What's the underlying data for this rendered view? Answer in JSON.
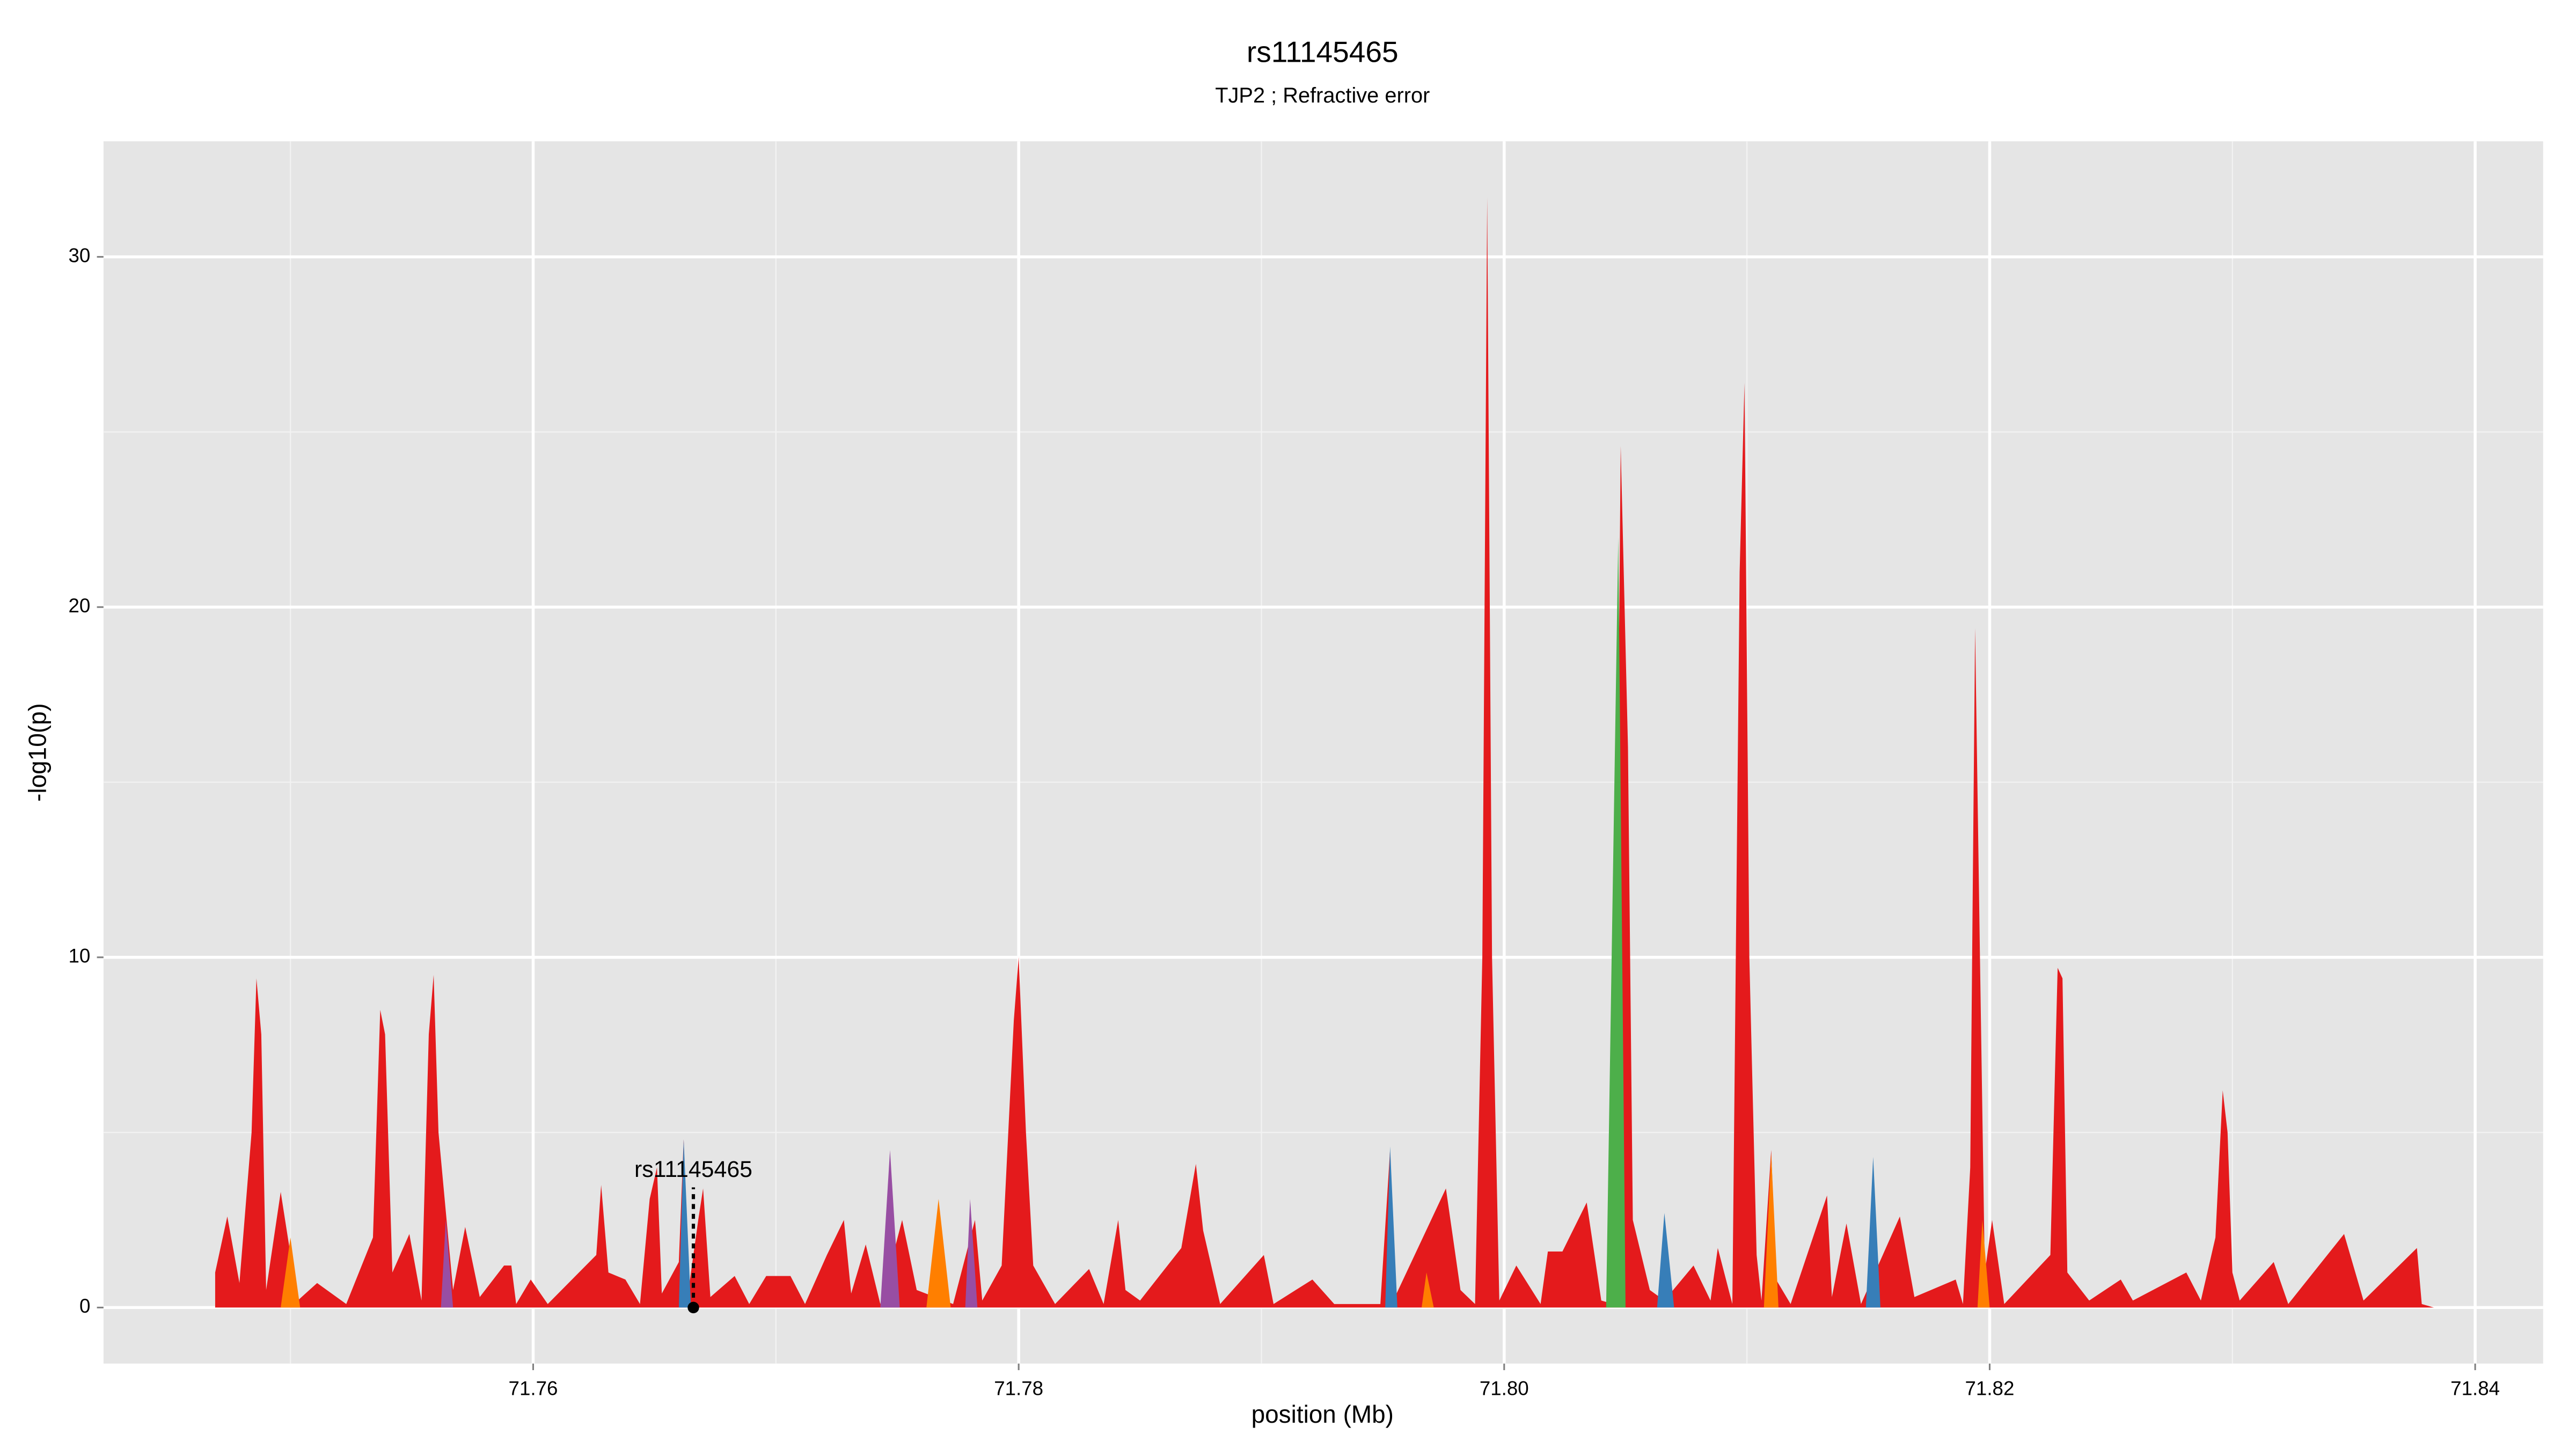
{
  "chart_data": {
    "type": "area",
    "title": "rs11145465",
    "subtitle": "TJP2 ; Refractive error",
    "x_label": "position (Mb)",
    "y_label": "-log10(p)",
    "xlim": [
      71.7423,
      71.8428
    ],
    "ylim": [
      -1.6,
      33.3
    ],
    "xticks": [
      71.76,
      71.78,
      {
        "value": 71.8,
        "label": "71.80"
      },
      71.82,
      71.84
    ],
    "yticks": [
      0,
      10,
      20,
      30
    ],
    "x_minor_grid": [
      71.75,
      71.77,
      71.79,
      71.81,
      71.83
    ],
    "y_minor_grid": [
      5,
      15,
      25
    ],
    "grid": true,
    "background": "#e5e5e5",
    "annotation": {
      "text": "rs11145465",
      "x": 71.7666,
      "y": 0,
      "label_y": 3.9
    },
    "series": [
      {
        "color": "#e41a1c",
        "x": [
          71.7469,
          71.7469,
          71.7474,
          71.7479,
          71.7484,
          71.7486,
          71.7488,
          71.749,
          71.7496,
          71.7503,
          71.7511,
          71.7523,
          71.7534,
          71.7537,
          71.7539,
          71.7542,
          71.7549,
          71.7554,
          71.7557,
          71.7559,
          71.7561,
          71.7567,
          71.7572,
          71.7578,
          71.7588,
          71.7591,
          71.7593,
          71.7599,
          71.7606,
          71.7626,
          71.7628,
          71.7631,
          71.7638,
          71.7644,
          71.7648,
          71.7651,
          71.7653,
          71.766,
          71.7662,
          71.7664,
          71.7668,
          71.767,
          71.7673,
          71.7683,
          71.7689,
          71.7696,
          71.7706,
          71.7712,
          71.7721,
          71.7728,
          71.7731,
          71.7737,
          71.7743,
          71.7752,
          71.7758,
          71.7773,
          71.7782,
          71.7785,
          71.7793,
          71.7798,
          71.78,
          71.7803,
          71.7806,
          71.7815,
          71.7829,
          71.7835,
          71.7841,
          71.7844,
          71.785,
          71.7867,
          71.7873,
          71.7876,
          71.7883,
          71.7901,
          71.7905,
          71.7921,
          71.793,
          71.7949,
          71.7953,
          71.7955,
          71.7976,
          71.7982,
          71.7988,
          71.7991,
          71.7993,
          71.7995,
          71.7998,
          71.8005,
          71.8015,
          71.8018,
          71.8024,
          71.8034,
          71.804,
          71.8045,
          71.8048,
          71.8051,
          71.8053,
          71.806,
          71.8066,
          71.8078,
          71.8085,
          71.8088,
          71.8094,
          71.8097,
          71.8099,
          71.8101,
          71.8104,
          71.8106,
          71.811,
          71.8112,
          71.8118,
          71.8133,
          71.8135,
          71.8141,
          71.8147,
          71.8163,
          71.8169,
          71.8186,
          71.8189,
          71.8192,
          71.8194,
          71.8196,
          71.8198,
          71.8201,
          71.8206,
          71.8225,
          71.8228,
          71.823,
          71.8232,
          71.8241,
          71.8254,
          71.8259,
          71.8281,
          71.8287,
          71.8293,
          71.8296,
          71.8298,
          71.83,
          71.8303,
          71.8317,
          71.8323,
          71.8346,
          71.8354,
          71.8376,
          71.8378,
          71.8383
        ],
        "values": [
          0,
          1,
          2.6,
          0.7,
          5,
          9.4,
          7.8,
          0.5,
          3.3,
          0.2,
          0.7,
          0.1,
          2,
          8.5,
          7.8,
          1,
          2.1,
          0.2,
          7.8,
          9.5,
          5,
          0.5,
          2.3,
          0.3,
          1.2,
          1.2,
          0.1,
          0.8,
          0.1,
          1.5,
          3.5,
          1,
          0.8,
          0.1,
          3.1,
          4,
          0.4,
          1.3,
          4.8,
          0.5,
          2.5,
          3.4,
          0.3,
          0.9,
          0.1,
          0.9,
          0.9,
          0.1,
          1.5,
          2.5,
          0.4,
          1.8,
          0.1,
          2.5,
          0.5,
          0.1,
          2.5,
          0.2,
          1.2,
          8.2,
          10,
          5,
          1.2,
          0.1,
          1.1,
          0.1,
          2.5,
          0.5,
          0.2,
          1.7,
          4.1,
          2.2,
          0.1,
          1.5,
          0.1,
          0.8,
          0.1,
          0.1,
          4.5,
          0.3,
          3.4,
          0.5,
          0.1,
          10,
          31.7,
          10,
          0.2,
          1.2,
          0.1,
          1.6,
          1.6,
          3,
          0.2,
          0.1,
          24.6,
          16,
          2.5,
          0.5,
          0.2,
          1.2,
          0.2,
          1.7,
          0.1,
          21,
          26.4,
          10,
          1.5,
          0.2,
          4.5,
          0.8,
          0.1,
          3.2,
          0.3,
          2.4,
          0.1,
          2.6,
          0.3,
          0.8,
          0.1,
          4,
          19.4,
          10,
          1,
          2.5,
          0.1,
          1.5,
          9.7,
          9.4,
          1,
          0.2,
          0.8,
          0.2,
          1,
          0.2,
          2,
          6.2,
          5,
          1,
          0.2,
          1.3,
          0.1,
          2.1,
          0.2,
          1.7,
          0.1,
          0
        ]
      },
      {
        "color": "#ff7f00",
        "x": [
          71.7496,
          71.75,
          71.7504,
          71.7504,
          71.7762,
          71.7767,
          71.7772,
          71.7772,
          71.7966,
          71.7968,
          71.7971,
          71.7971,
          71.8107,
          71.811,
          71.8113,
          71.8113,
          71.8195,
          71.8197,
          71.82
        ],
        "values": [
          0,
          2,
          0,
          null,
          0,
          3.1,
          0,
          null,
          0,
          1,
          0,
          null,
          0,
          4.4,
          0,
          null,
          0,
          2.5,
          0
        ]
      },
      {
        "color": "#377eb8",
        "x": [
          71.766,
          71.7662,
          71.7665,
          71.7665,
          71.7951,
          71.7953,
          71.7956,
          71.7956,
          71.8063,
          71.8066,
          71.807,
          71.807,
          71.8149,
          71.8152,
          71.8155
        ],
        "values": [
          0,
          4.8,
          0,
          null,
          0,
          4.6,
          0,
          null,
          0,
          2.7,
          0,
          null,
          0,
          4.3,
          0
        ]
      },
      {
        "color": "#984ea3",
        "x": [
          71.7562,
          71.7564,
          71.7567,
          71.7567,
          71.7743,
          71.7747,
          71.7751,
          71.7751,
          71.7778,
          71.778,
          71.7783
        ],
        "values": [
          0,
          2.5,
          0,
          null,
          0,
          4.5,
          0,
          null,
          0,
          3.1,
          0
        ]
      },
      {
        "color": "#4daf4a",
        "x": [
          71.8042,
          71.8047,
          71.805
        ],
        "values": [
          0,
          22,
          0
        ]
      }
    ]
  }
}
